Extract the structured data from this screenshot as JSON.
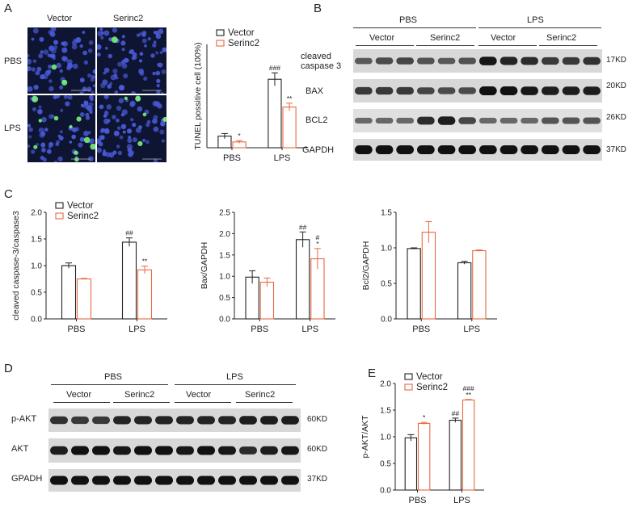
{
  "colors": {
    "vector": "#222222",
    "serinc2": "#e8693f",
    "micro_bg": "#0e1533",
    "nuclei": "#4a5ad8",
    "tunel": "#7dff7d"
  },
  "panelA": {
    "label": "A",
    "col_labels": [
      "Vector",
      "Serinc2"
    ],
    "row_labels": [
      "PBS",
      "LPS"
    ]
  },
  "panelB": {
    "label": "B",
    "groups": [
      "PBS",
      "LPS"
    ],
    "subgroups": [
      "Vector",
      "Serinc2",
      "Vector",
      "Serinc2"
    ],
    "rows": [
      {
        "name_line1": "cleaved",
        "name_line2": "caspase 3",
        "size": "17KD"
      },
      {
        "name_line1": "BAX",
        "name_line2": "",
        "size": "20KD"
      },
      {
        "name_line1": "BCL2",
        "name_line2": "",
        "size": "26KD"
      },
      {
        "name_line1": "GAPDH",
        "name_line2": "",
        "size": "37KD"
      }
    ]
  },
  "panelC": {
    "label": "C"
  },
  "panelD": {
    "label": "D",
    "groups": [
      "PBS",
      "LPS"
    ],
    "subgroups": [
      "Vector",
      "Serinc2",
      "Vector",
      "Serinc2"
    ],
    "rows": [
      {
        "name": "p-AKT",
        "size": "60KD"
      },
      {
        "name": "AKT",
        "size": "60KD"
      },
      {
        "name": "GPADH",
        "size": "37KD"
      }
    ]
  },
  "panelE": {
    "label": "E"
  },
  "chart_data": [
    {
      "id": "A-tunel",
      "type": "bar",
      "categories": [
        "PBS",
        "LPS"
      ],
      "series": [
        {
          "name": "Vector",
          "values": [
            9,
            53
          ],
          "errors": [
            2,
            5
          ]
        },
        {
          "name": "Serinc2",
          "values": [
            4.5,
            31.5
          ],
          "errors": [
            1,
            3
          ]
        }
      ],
      "annotations": [
        {
          "category": "PBS",
          "series": "Serinc2",
          "text": "*"
        },
        {
          "category": "LPS",
          "series": "Vector",
          "text": "###"
        },
        {
          "category": "LPS",
          "series": "Serinc2",
          "text": "**"
        }
      ],
      "ylabel": "TUNEL possitive cell (100%)",
      "ylim": [
        0,
        80
      ],
      "yticks": [],
      "legend": "top-left"
    },
    {
      "id": "C1",
      "type": "bar",
      "categories": [
        "PBS",
        "LPS"
      ],
      "series": [
        {
          "name": "Vector",
          "values": [
            1.0,
            1.44
          ],
          "errors": [
            0.05,
            0.08
          ]
        },
        {
          "name": "Serinc2",
          "values": [
            0.75,
            0.92
          ],
          "errors": [
            0.01,
            0.07
          ]
        }
      ],
      "annotations": [
        {
          "category": "LPS",
          "series": "Vector",
          "text": "##"
        },
        {
          "category": "LPS",
          "series": "Serinc2",
          "text": "**"
        }
      ],
      "ylabel": "cleaved caspase-3/caspase3",
      "ylim": [
        0,
        2.0
      ],
      "yticks": [
        "0.0",
        "0.5",
        "1.0",
        "1.5",
        "2.0"
      ],
      "legend": "top-left"
    },
    {
      "id": "C2",
      "type": "bar",
      "categories": [
        "PBS",
        "LPS"
      ],
      "series": [
        {
          "name": "Vector",
          "values": [
            0.98,
            1.86
          ],
          "errors": [
            0.15,
            0.18
          ]
        },
        {
          "name": "Serinc2",
          "values": [
            0.86,
            1.41
          ],
          "errors": [
            0.1,
            0.24
          ]
        }
      ],
      "annotations": [
        {
          "category": "LPS",
          "series": "Vector",
          "text": "##"
        },
        {
          "category": "LPS",
          "series": "Serinc2",
          "text": "#"
        },
        {
          "category": "LPS",
          "series": "Serinc2",
          "text": "*"
        }
      ],
      "ylabel": "Bax/GAPDH",
      "ylim": [
        0,
        2.5
      ],
      "yticks": [
        "0.0",
        "0.5",
        "1.0",
        "1.5",
        "2.0",
        "2.5"
      ]
    },
    {
      "id": "C3",
      "type": "bar",
      "categories": [
        "PBS",
        "LPS"
      ],
      "series": [
        {
          "name": "Vector",
          "values": [
            0.99,
            0.79
          ],
          "errors": [
            0.01,
            0.02
          ]
        },
        {
          "name": "Serinc2",
          "values": [
            1.22,
            0.96
          ],
          "errors": [
            0.15,
            0.01
          ]
        }
      ],
      "annotations": [],
      "ylabel": "Bcl2/GAPDH",
      "ylim": [
        0,
        1.5
      ],
      "yticks": [
        "0.0",
        "0.5",
        "1.0",
        "1.5"
      ]
    },
    {
      "id": "E1",
      "type": "bar",
      "categories": [
        "PBS",
        "LPS"
      ],
      "series": [
        {
          "name": "Vector",
          "values": [
            0.98,
            1.31
          ],
          "errors": [
            0.06,
            0.04
          ]
        },
        {
          "name": "Serinc2",
          "values": [
            1.25,
            1.69
          ],
          "errors": [
            0.02,
            0.01
          ]
        }
      ],
      "annotations": [
        {
          "category": "PBS",
          "series": "Serinc2",
          "text": "*"
        },
        {
          "category": "LPS",
          "series": "Vector",
          "text": "##"
        },
        {
          "category": "LPS",
          "series": "Serinc2",
          "text": "###"
        },
        {
          "category": "LPS",
          "series": "Serinc2",
          "text": "**"
        }
      ],
      "ylabel": "p-AKT/AKT",
      "ylim": [
        0,
        2.0
      ],
      "yticks": [
        "0.0",
        "0.5",
        "1.0",
        "1.5",
        "2.0"
      ],
      "legend": "top-left"
    }
  ]
}
